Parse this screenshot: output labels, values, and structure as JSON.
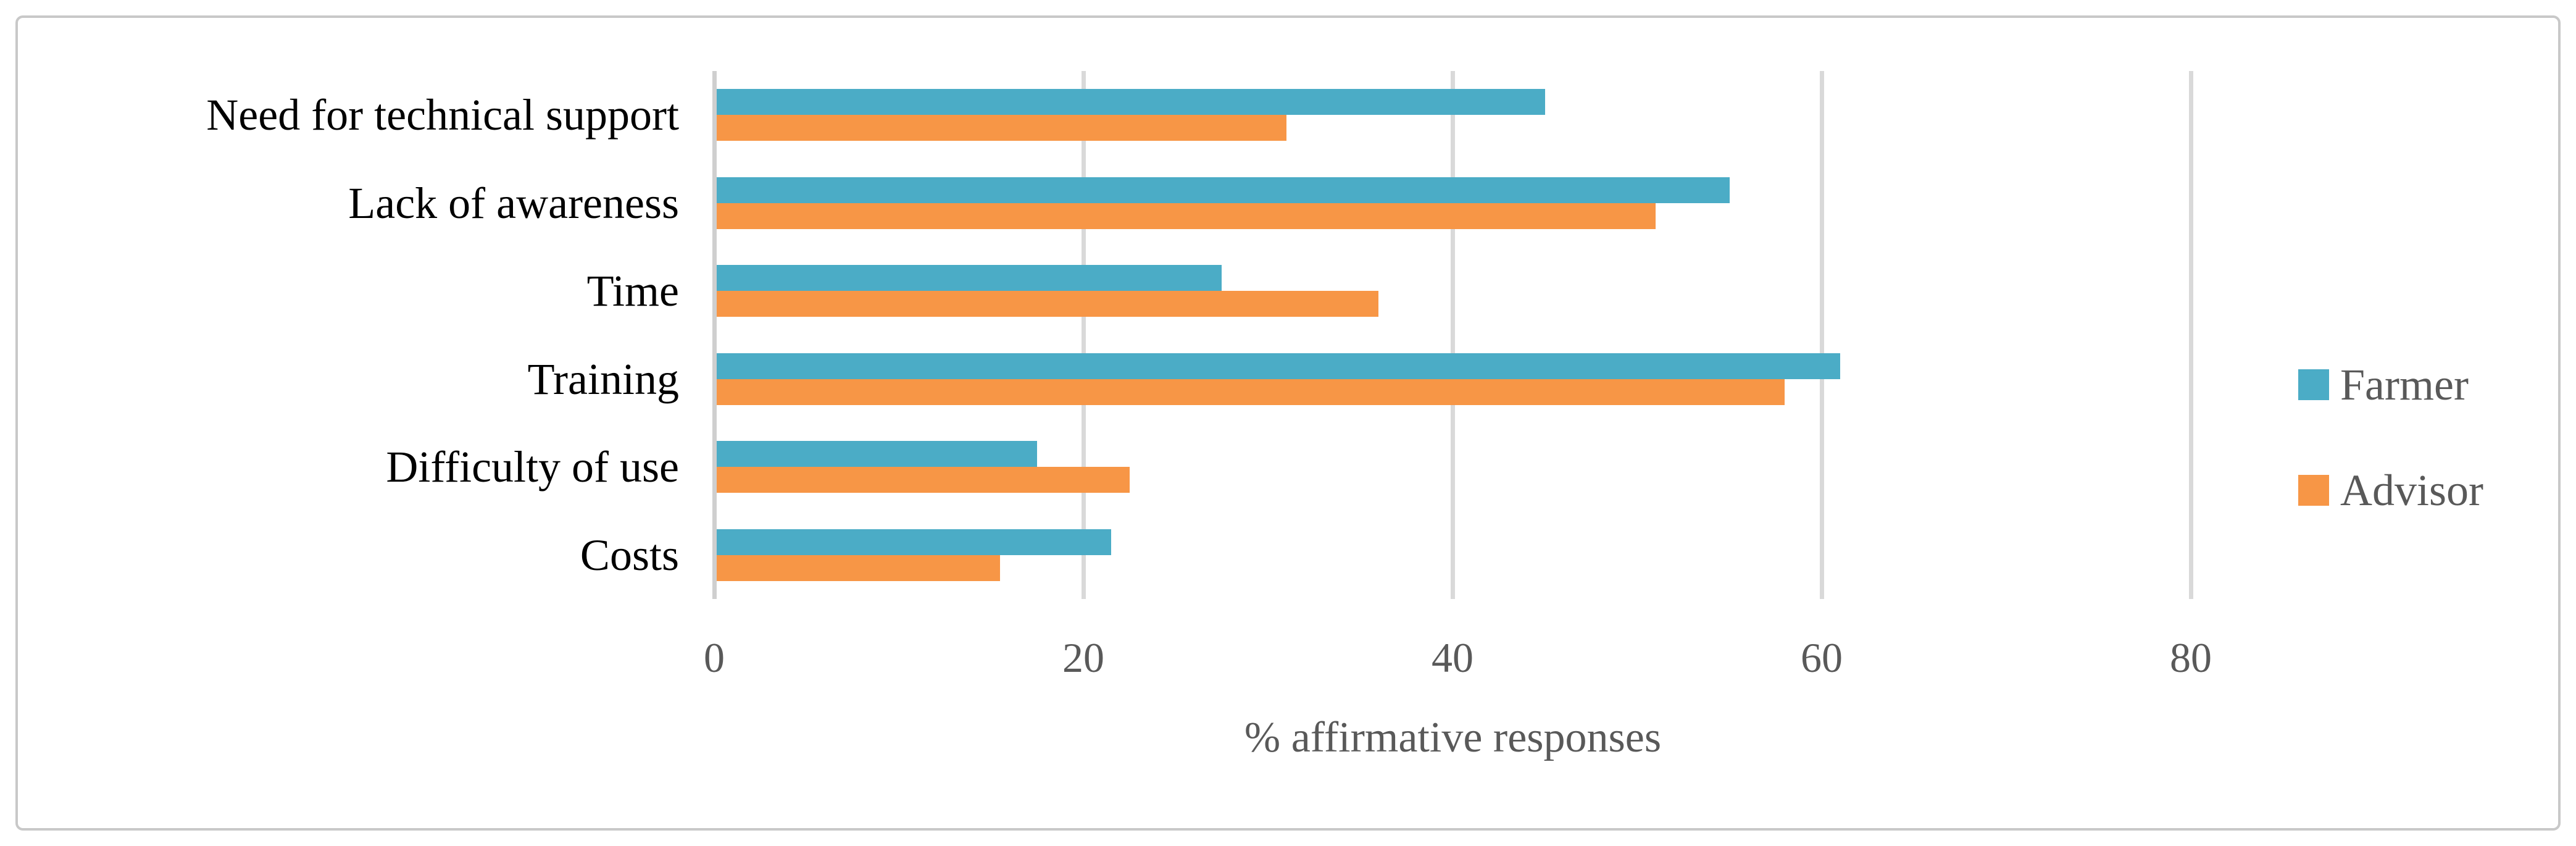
{
  "chart_data": {
    "type": "bar",
    "orientation": "horizontal",
    "title": "",
    "xlabel": "% affirmative responses",
    "ylabel": "",
    "categories": [
      "Need for technical support",
      "Lack of awareness",
      "Time",
      "Training",
      "Difficulty of use",
      "Costs"
    ],
    "series": [
      {
        "name": "Farmer",
        "color": "#4BACC6",
        "values": [
          45,
          55,
          27.5,
          61,
          17.5,
          21.5
        ]
      },
      {
        "name": "Advisor",
        "color": "#F79646",
        "values": [
          31,
          51,
          36,
          58,
          22.5,
          15.5
        ]
      }
    ],
    "x_ticks": [
      0,
      20,
      40,
      60,
      80
    ],
    "xlim": [
      0,
      80
    ],
    "grid": true,
    "legend_position": "right"
  },
  "colors": {
    "farmer": "#4BACC6",
    "advisor": "#F79646",
    "gridline": "#D9D9D9",
    "axis_line": "#CFCFCF",
    "tick_text": "#595959",
    "category_text": "#000000",
    "frame_border": "#C8C8C8"
  }
}
